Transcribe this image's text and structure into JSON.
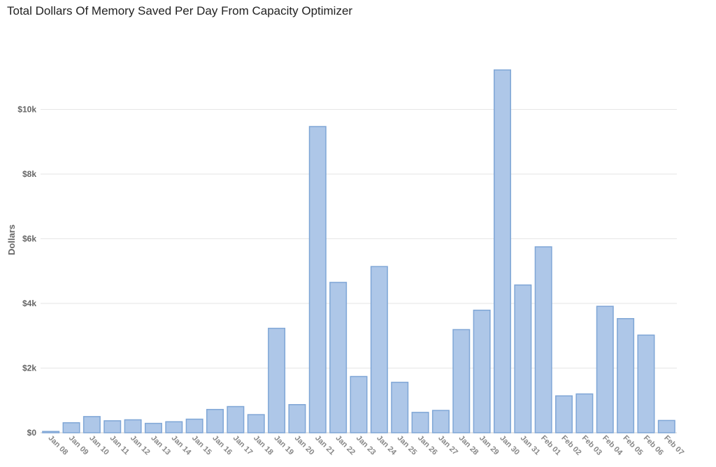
{
  "chart_data": {
    "type": "bar",
    "title": "Total Dollars Of Memory Saved Per Day From Capacity Optimizer",
    "ylabel": "Dollars",
    "xlabel": "",
    "ylim": [
      0,
      11200
    ],
    "yticks": [
      0,
      2000,
      4000,
      6000,
      8000,
      10000
    ],
    "ytick_labels": [
      "$0",
      "$2k",
      "$4k",
      "$6k",
      "$8k",
      "$10k"
    ],
    "grid": true,
    "bar_color": "#aec7e8",
    "bar_edge_color": "#7fa6d6",
    "categories": [
      "Jan 08",
      "Jan 09",
      "Jan 10",
      "Jan 11",
      "Jan 12",
      "Jan 13",
      "Jan 14",
      "Jan 15",
      "Jan 16",
      "Jan 17",
      "Jan 18",
      "Jan 19",
      "Jan 20",
      "Jan 21",
      "Jan 22",
      "Jan 23",
      "Jan 24",
      "Jan 25",
      "Jan 26",
      "Jan 27",
      "Jan 28",
      "Jan 29",
      "Jan 30",
      "Jan 31",
      "Feb 01",
      "Feb 02",
      "Feb 03",
      "Feb 04",
      "Feb 05",
      "Feb 06",
      "Feb 07"
    ],
    "values": [
      40,
      310,
      500,
      370,
      400,
      290,
      340,
      420,
      720,
      810,
      560,
      3230,
      870,
      9470,
      4650,
      1740,
      5140,
      1560,
      630,
      690,
      3190,
      3790,
      11220,
      4570,
      5750,
      1140,
      1200,
      3910,
      3530,
      3020,
      380
    ]
  }
}
